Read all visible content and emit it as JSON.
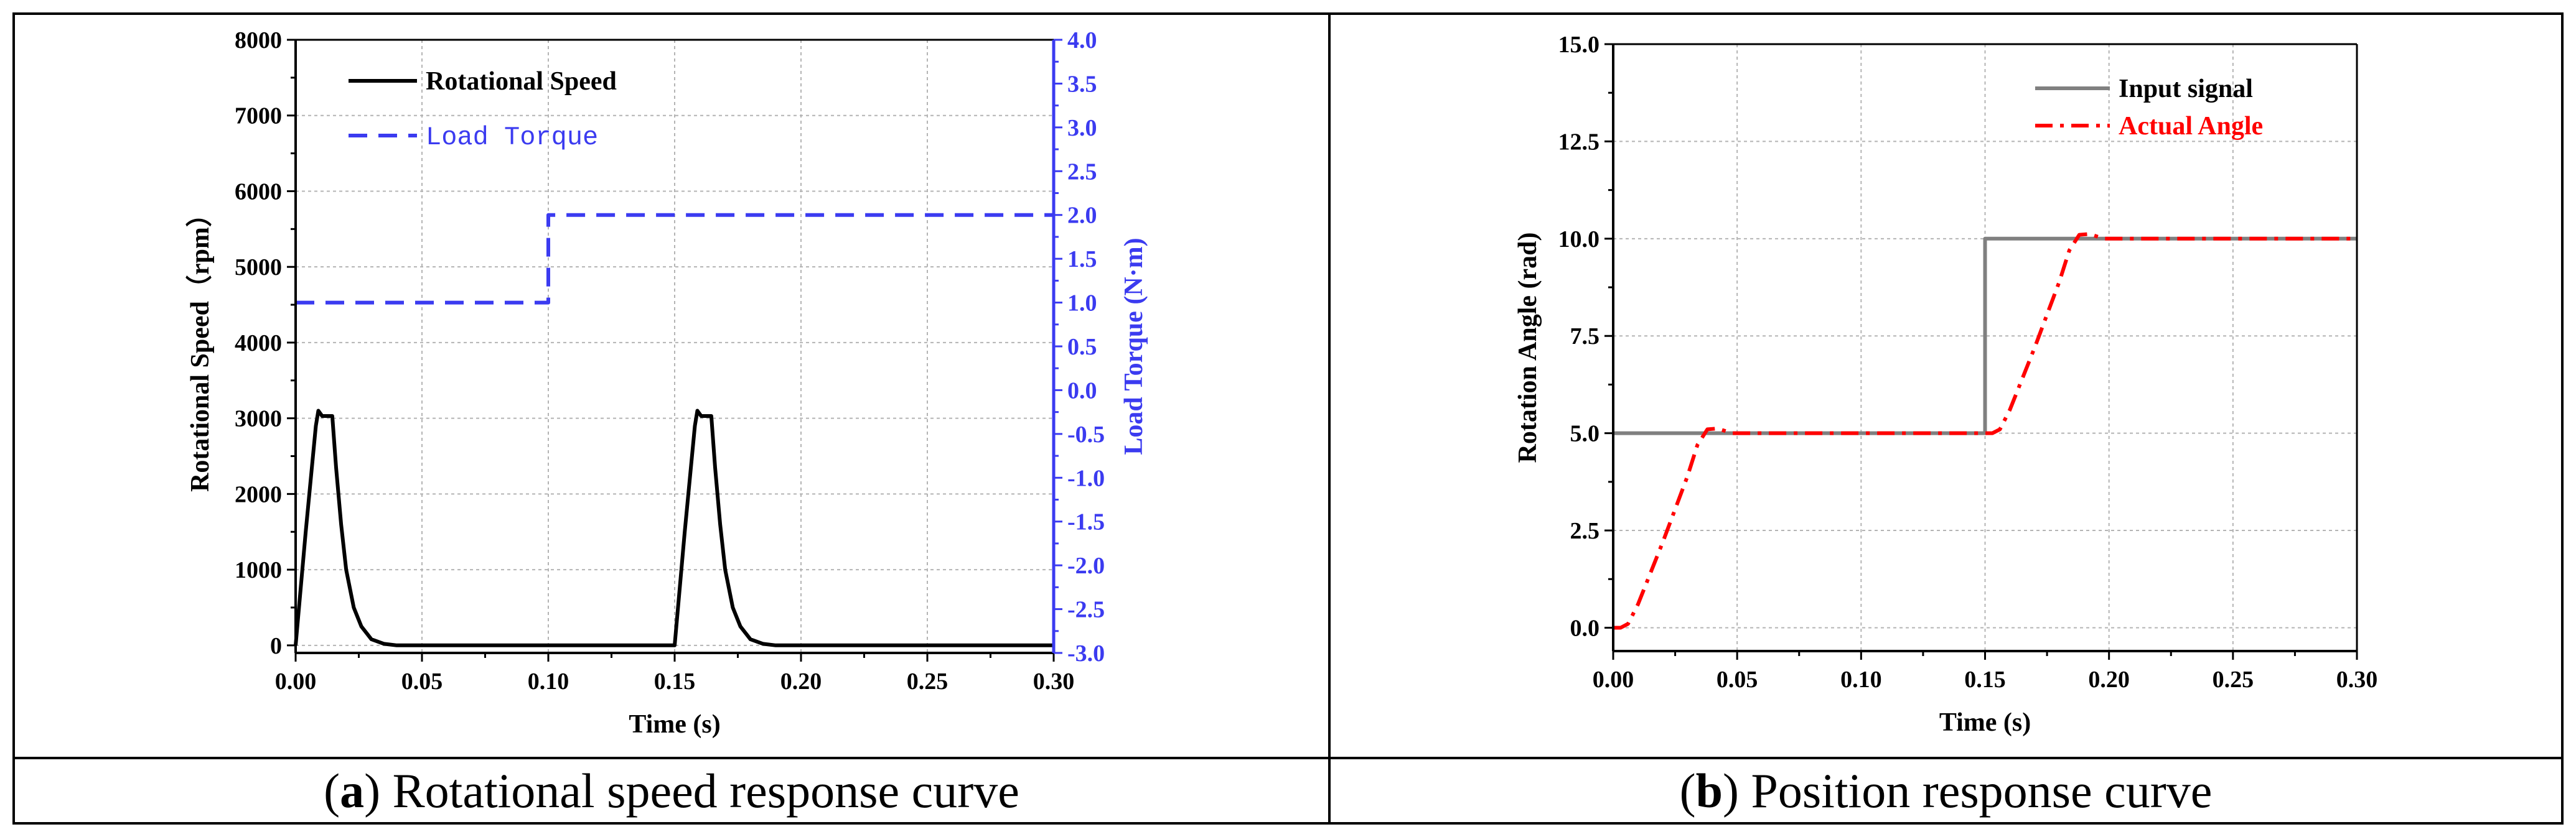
{
  "colors": {
    "speed": "#000000",
    "torque": "#3b3bf0",
    "input": "#808080",
    "actual": "#ff0000",
    "grid": "#b4b4b4"
  },
  "captions": {
    "a": {
      "tag": "a",
      "text": "Rotational speed response curve"
    },
    "b": {
      "tag": "b",
      "text": "Position response curve"
    }
  },
  "chart_data": [
    {
      "id": "a",
      "type": "line",
      "title": "",
      "xlabel": "Time (s)",
      "ylabel": "Rotational Speed（rpm）",
      "y2label": "Load Torque (N·m)",
      "xlim": [
        0,
        0.3
      ],
      "ylim": [
        -100,
        8000
      ],
      "y2lim": [
        -3.0,
        4.0
      ],
      "xticks": [
        "0.00",
        "0.05",
        "0.10",
        "0.15",
        "0.20",
        "0.25",
        "0.30"
      ],
      "yticks": [
        "0",
        "1000",
        "2000",
        "3000",
        "4000",
        "5000",
        "6000",
        "7000",
        "8000"
      ],
      "y2ticks": [
        "-3.0",
        "-2.5",
        "-2.0",
        "-1.5",
        "-1.0",
        "-0.5",
        "0.0",
        "0.5",
        "1.0",
        "1.5",
        "2.0",
        "2.5",
        "3.0",
        "3.5",
        "4.0"
      ],
      "grid": true,
      "legend_position": "top-left",
      "series": [
        {
          "name": "Rotational Speed",
          "axis": "left",
          "style": "solid",
          "x": [
            0,
            0.004,
            0.008,
            0.009,
            0.0105,
            0.0145,
            0.016,
            0.018,
            0.02,
            0.023,
            0.026,
            0.03,
            0.035,
            0.04,
            0.1,
            0.15,
            0.154,
            0.158,
            0.159,
            0.1605,
            0.1645,
            0.166,
            0.168,
            0.17,
            0.173,
            0.176,
            0.18,
            0.185,
            0.19,
            0.3
          ],
          "y": [
            0,
            1500,
            2900,
            3100,
            3030,
            3030,
            2350,
            1600,
            1000,
            500,
            250,
            80,
            20,
            0,
            0,
            0,
            1500,
            2900,
            3100,
            3030,
            3030,
            2350,
            1600,
            1000,
            500,
            250,
            80,
            20,
            0,
            0
          ]
        },
        {
          "name": "Load Torque",
          "axis": "right",
          "style": "dashed",
          "x": [
            0,
            0.1,
            0.1,
            0.3
          ],
          "y": [
            1.0,
            1.0,
            2.0,
            2.0
          ]
        }
      ]
    },
    {
      "id": "b",
      "type": "line",
      "title": "",
      "xlabel": "Time (s)",
      "ylabel": "Rotation Angle (rad)",
      "xlim": [
        0,
        0.3
      ],
      "ylim": [
        -0.6,
        15.0
      ],
      "xticks": [
        "0.00",
        "0.05",
        "0.10",
        "0.15",
        "0.20",
        "0.25",
        "0.30"
      ],
      "yticks": [
        "0.0",
        "2.5",
        "5.0",
        "7.5",
        "10.0",
        "12.5",
        "15.0"
      ],
      "grid": true,
      "legend_position": "top-right",
      "series": [
        {
          "name": "Input signal",
          "style": "solid",
          "x": [
            0,
            0.15,
            0.15,
            0.3
          ],
          "y": [
            5,
            5,
            10,
            10
          ]
        },
        {
          "name": "Actual  Angle",
          "style": "dashdot",
          "x": [
            0,
            0.003,
            0.006,
            0.01,
            0.02,
            0.03,
            0.034,
            0.038,
            0.042,
            0.048,
            0.06,
            0.15,
            0.153,
            0.156,
            0.16,
            0.17,
            0.18,
            0.184,
            0.188,
            0.192,
            0.198,
            0.21,
            0.3
          ],
          "y": [
            0,
            0,
            0.1,
            0.6,
            2.2,
            3.9,
            4.7,
            5.1,
            5.12,
            5.0,
            5.0,
            5.0,
            5.0,
            5.1,
            5.6,
            7.2,
            8.9,
            9.7,
            10.1,
            10.12,
            10.0,
            10.0,
            10.0
          ]
        }
      ]
    }
  ]
}
